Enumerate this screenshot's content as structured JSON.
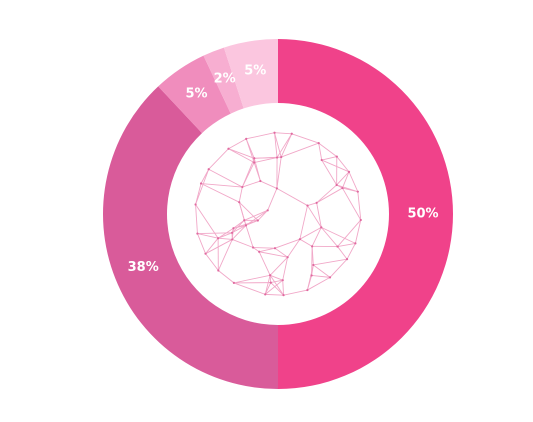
{
  "chart_data": {
    "type": "pie",
    "variant": "donut",
    "title": "",
    "legend": "none",
    "center_decoration": "wireframe-globe-icon",
    "slices": [
      {
        "label": "50%",
        "value": 50,
        "color": "#f0428a"
      },
      {
        "label": "38%",
        "value": 38,
        "color": "#d95b9a"
      },
      {
        "label": "5%",
        "value": 5,
        "color": "#f08dbd"
      },
      {
        "label": "2%",
        "value": 2,
        "color": "#f7aed1"
      },
      {
        "label": "5%",
        "value": 5,
        "color": "#fbc6df"
      }
    ],
    "globe_color": "#f1a8c8"
  }
}
